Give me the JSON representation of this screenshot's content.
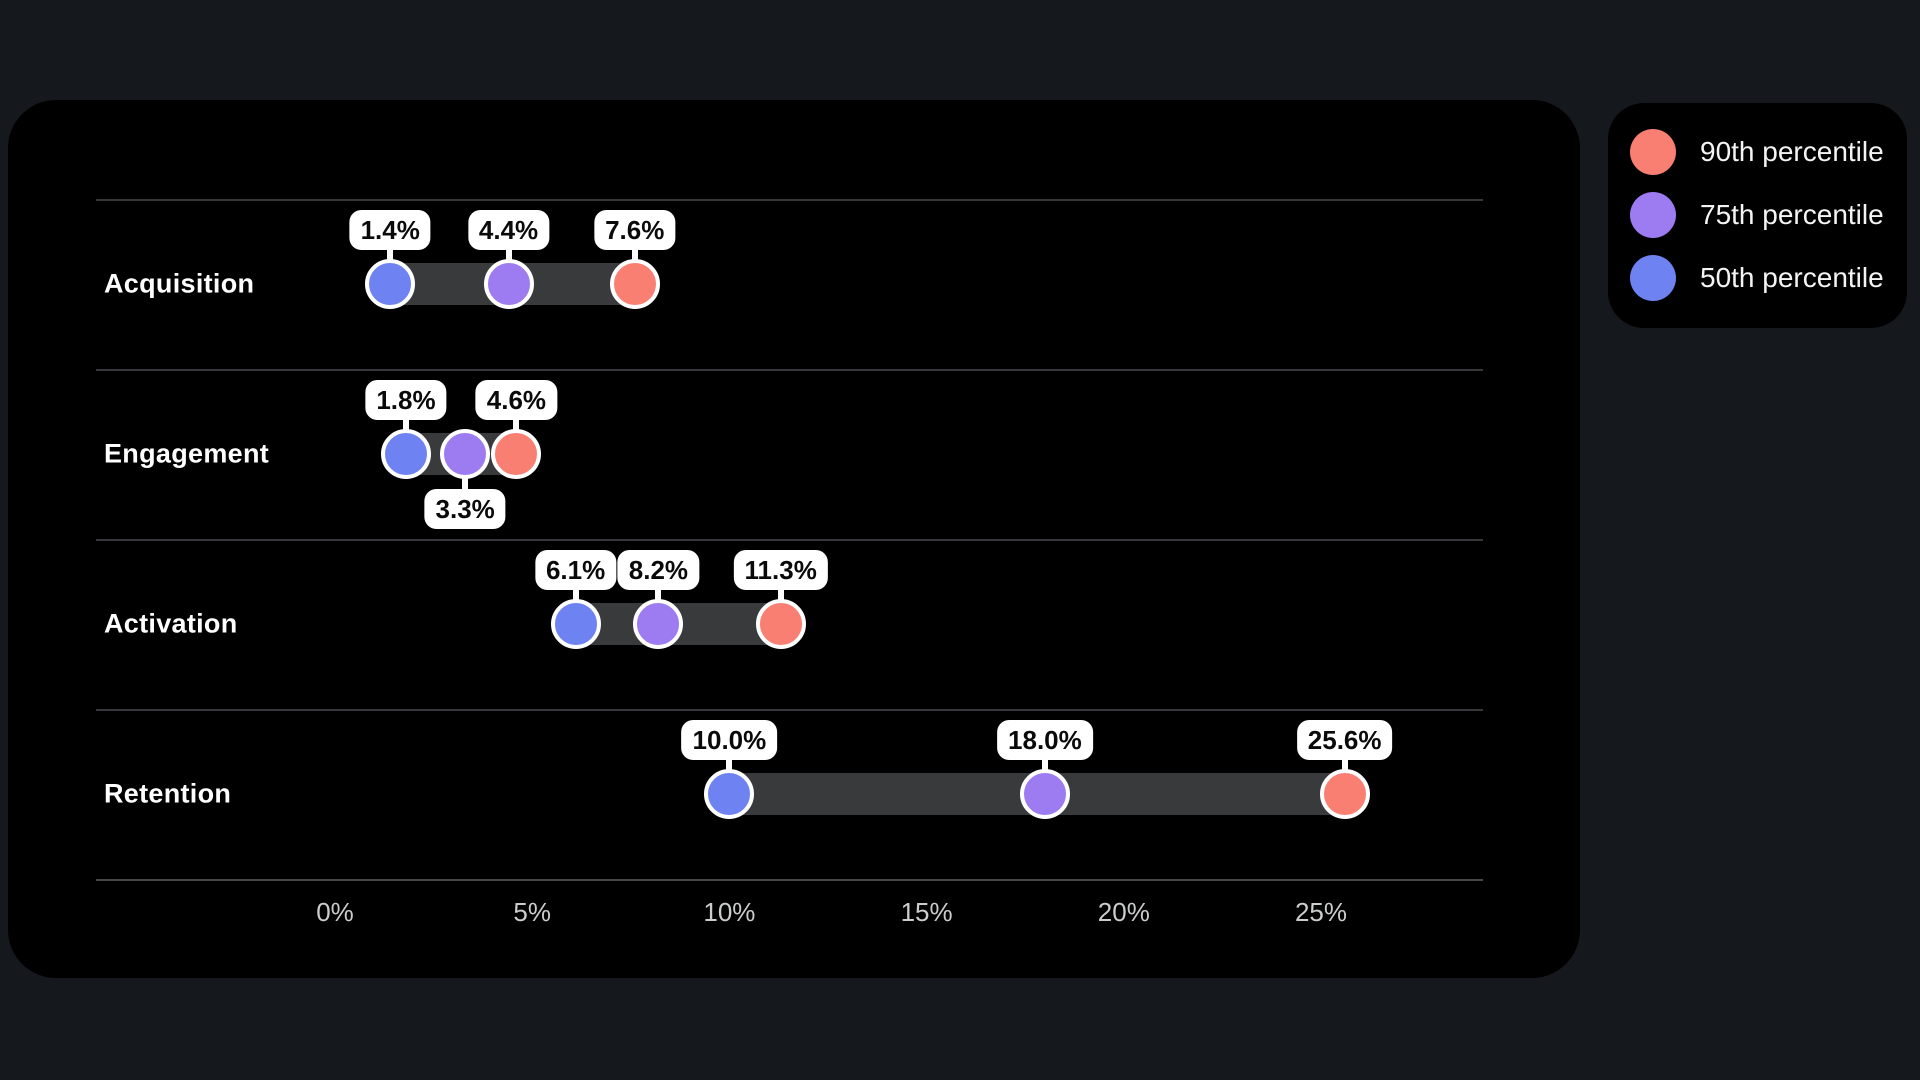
{
  "page": {
    "background": "#15191d",
    "card_background": "#000000"
  },
  "legend": {
    "items": [
      {
        "label": "90th percentile",
        "color": "#f97f73"
      },
      {
        "label": "75th percentile",
        "color": "#9d7bf0"
      },
      {
        "label": "50th percentile",
        "color": "#6e82f1"
      }
    ]
  },
  "chart_data": {
    "type": "dumbbell",
    "title": "",
    "xlabel": "",
    "ylabel": "",
    "categories": [
      "Acquisition",
      "Engagement",
      "Activation",
      "Retention"
    ],
    "series": [
      {
        "name": "50th percentile",
        "color": "#6e82f1",
        "values": [
          1.4,
          1.8,
          6.1,
          10.0
        ]
      },
      {
        "name": "75th percentile",
        "color": "#9d7bf0",
        "values": [
          4.4,
          3.3,
          8.2,
          18.0
        ]
      },
      {
        "name": "90th percentile",
        "color": "#f97f73",
        "values": [
          7.6,
          4.6,
          11.3,
          25.6
        ]
      }
    ],
    "value_labels": [
      [
        "1.4%",
        "4.4%",
        "7.6%"
      ],
      [
        "1.8%",
        "3.3%",
        "4.6%"
      ],
      [
        "6.1%",
        "8.2%",
        "11.3%"
      ],
      [
        "10.0%",
        "18.0%",
        "25.6%"
      ]
    ],
    "label_positions": [
      [
        "above",
        "above",
        "above"
      ],
      [
        "above",
        "below",
        "above"
      ],
      [
        "above",
        "above",
        "above"
      ],
      [
        "above",
        "above",
        "above"
      ]
    ],
    "x_axis": {
      "min": 0,
      "max": 25,
      "ticks": [
        "0%",
        "5%",
        "10%",
        "15%",
        "20%",
        "25%"
      ],
      "tick_values": [
        0,
        5,
        10,
        15,
        20,
        25
      ]
    },
    "grid": "horizontal row separators",
    "range_band_color": "#383a3c",
    "legend_position": "outside top-right"
  }
}
